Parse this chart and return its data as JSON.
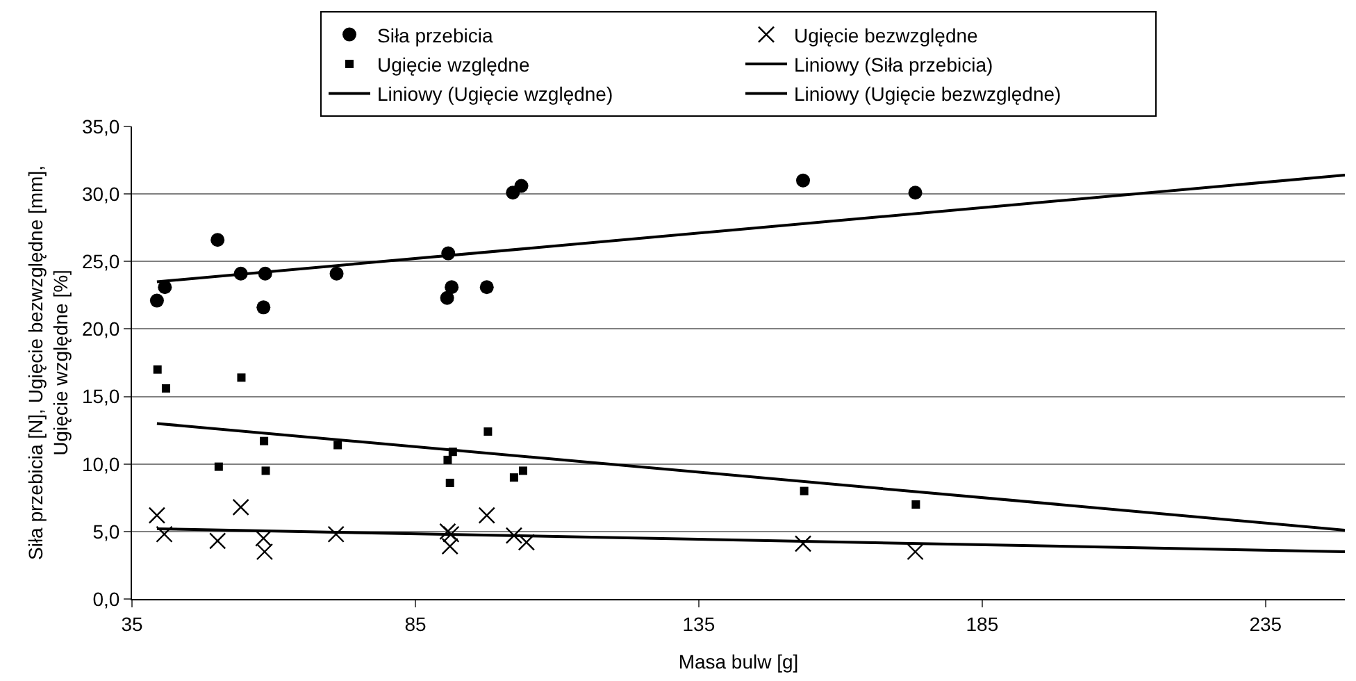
{
  "chart_data": {
    "type": "scatter",
    "xlabel": "Masa bulw [g]",
    "ylabel": "Siła przebicia [N], Ugięcie bezwzględne [mm],\nUgięcie względne [%]",
    "xlim": [
      35,
      249
    ],
    "xticks": [
      35,
      85,
      135,
      185,
      235
    ],
    "ylim": [
      0,
      35
    ],
    "yticks": [
      {
        "value": 0,
        "label": "0,0"
      },
      {
        "value": 5,
        "label": "5,0"
      },
      {
        "value": 10,
        "label": "10,0"
      },
      {
        "value": 15,
        "label": "15,0"
      },
      {
        "value": 20,
        "label": "20,0"
      },
      {
        "value": 25,
        "label": "25,0"
      },
      {
        "value": 30,
        "label": "30,0"
      },
      {
        "value": 35,
        "label": "35,0"
      }
    ],
    "grid": "y",
    "legend": "top",
    "series": [
      {
        "name": "Siła przebicia",
        "marker": "circle",
        "color": "#000000",
        "x": [
          39.4,
          40.8,
          50.1,
          54.2,
          58.5,
          58.2,
          71.1,
          90.8,
          91.4,
          90.6,
          97.6,
          102.2,
          103.7,
          153.4,
          173.2
        ],
        "values": [
          22.1,
          23.1,
          26.6,
          24.1,
          24.1,
          21.6,
          24.1,
          25.6,
          23.1,
          22.3,
          23.1,
          30.1,
          30.6,
          31.0,
          30.1
        ]
      },
      {
        "name": "Ugięcie bezwzględne",
        "marker": "cross",
        "color": "#000000",
        "x": [
          39.4,
          40.7,
          50.1,
          54.2,
          58.2,
          58.4,
          71.0,
          90.7,
          91.1,
          91.3,
          97.6,
          102.4,
          104.6,
          153.4,
          173.2
        ],
        "values": [
          6.2,
          4.8,
          4.3,
          6.8,
          4.5,
          3.5,
          4.8,
          5.0,
          3.9,
          4.8,
          6.2,
          4.7,
          4.2,
          4.1,
          3.5
        ]
      },
      {
        "name": "Ugięcie względne",
        "marker": "square",
        "color": "#000000",
        "x": [
          39.5,
          41.0,
          54.3,
          50.3,
          58.3,
          58.6,
          71.3,
          90.7,
          91.6,
          91.1,
          97.8,
          102.4,
          104.0,
          153.6,
          173.3
        ],
        "values": [
          17.0,
          15.6,
          16.4,
          9.8,
          11.7,
          9.5,
          11.4,
          10.3,
          10.9,
          8.6,
          12.4,
          9.0,
          9.5,
          8.0,
          7.0
        ]
      },
      {
        "name": "Liniowy (Siła przebicia)",
        "type": "line",
        "color": "#000000",
        "x": [
          39.4,
          249
        ],
        "values": [
          23.5,
          31.4
        ]
      },
      {
        "name": "Liniowy (Ugięcie względne)",
        "type": "line",
        "color": "#000000",
        "x": [
          39.4,
          249
        ],
        "values": [
          13.0,
          5.1
        ]
      },
      {
        "name": "Liniowy (Ugięcie bezwzględne)",
        "type": "line",
        "color": "#000000",
        "x": [
          39.4,
          249
        ],
        "values": [
          5.2,
          3.5
        ]
      }
    ]
  }
}
